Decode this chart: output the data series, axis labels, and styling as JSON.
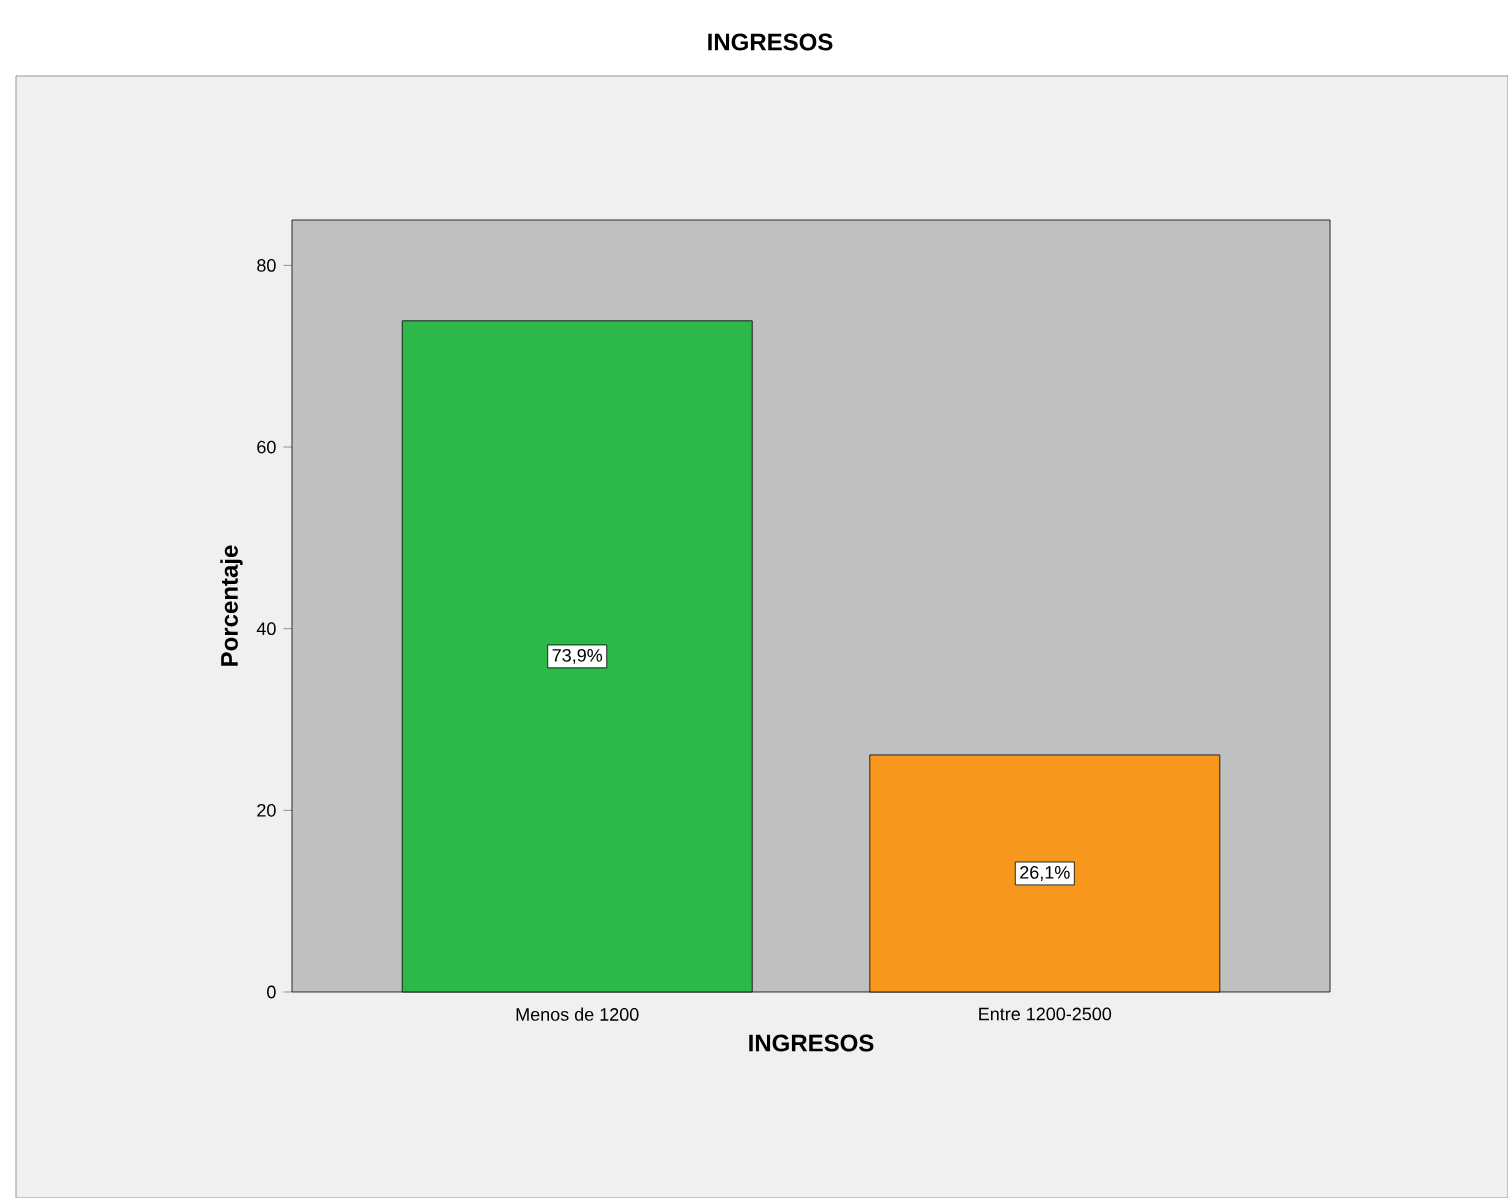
{
  "chart_data": {
    "type": "bar",
    "title": "INGRESOS",
    "xlabel": "INGRESOS",
    "ylabel": "Porcentaje",
    "categories": [
      "Menos de 1200",
      "Entre 1200-2500"
    ],
    "values": [
      73.9,
      26.1
    ],
    "colors": [
      "#2db84a",
      "#f7981d"
    ],
    "value_labels": [
      "73,9%",
      "26,1%"
    ],
    "ylim": [
      0,
      85
    ],
    "yticks": [
      0,
      20,
      40,
      60,
      80
    ]
  }
}
